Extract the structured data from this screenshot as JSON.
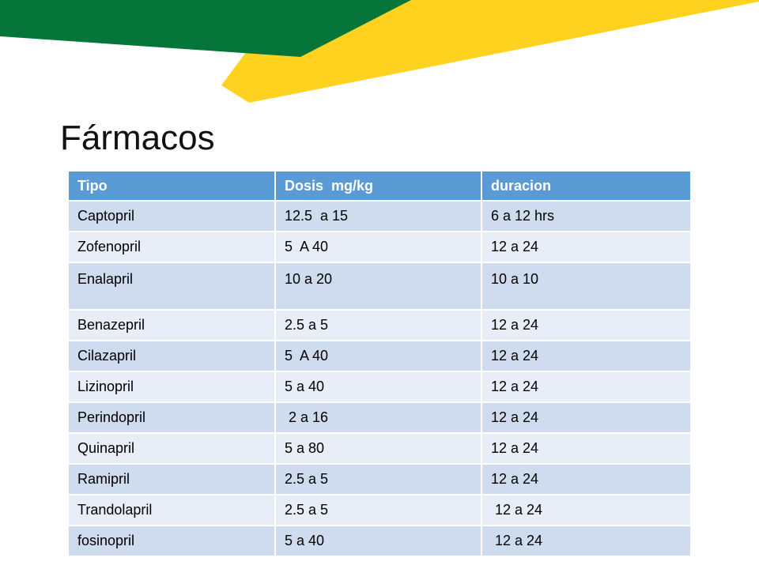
{
  "slide": {
    "title": "Fármacos",
    "colors": {
      "green": "#06753a",
      "yellow": "#ffd21f",
      "header": "#5b9bd5",
      "row_dark": "#cfdbee",
      "row_light": "#e8eef7"
    }
  },
  "table": {
    "headers": [
      "Tipo",
      "Dosis  mg/kg",
      "duracion"
    ],
    "rows": [
      [
        "Captopril",
        "12.5  a 15",
        "6 a 12 hrs"
      ],
      [
        "Zofenopril",
        "5  A 40",
        "12 a 24"
      ],
      [
        "Enalapril",
        "10 a 20",
        "10 a 10"
      ],
      [
        "Benazepril",
        "2.5 a 5",
        "12 a 24"
      ],
      [
        "Cilazapril",
        "5  A 40",
        "12 a 24"
      ],
      [
        "Lizinopril",
        "5 a 40",
        "12 a 24"
      ],
      [
        "Perindopril",
        " 2 a 16",
        "12 a 24"
      ],
      [
        "Quinapril",
        "5 a 80",
        "12 a 24"
      ],
      [
        "Ramipril",
        "2.5 a 5",
        "12 a 24"
      ],
      [
        "Trandolapril",
        "2.5 a 5",
        " 12 a 24"
      ],
      [
        "fosinopril",
        "5 a 40",
        " 12 a 24"
      ]
    ]
  }
}
